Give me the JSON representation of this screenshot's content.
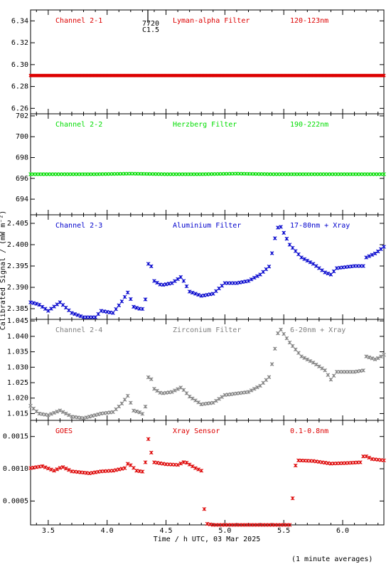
{
  "x_axis_label": "Time / h UTC, 03 Mar 2025",
  "y_axis_label": "Calibrated Signal / (mW m⁻²)",
  "footnote": "(1 minute averages)",
  "marker_note": [
    "7720",
    "C1.5"
  ],
  "chart_data": {
    "type": "scatter",
    "x_range": [
      3.35,
      6.35
    ],
    "x_ticks": [
      3.5,
      4.0,
      4.5,
      5.0,
      5.5,
      6.0
    ],
    "x_tick_labels": [
      "3.5",
      "4.0",
      "4.5",
      "5.0",
      "5.5",
      "6.0"
    ],
    "panels": [
      {
        "labels": [
          "Channel 2-1",
          "Lyman-alpha Filter",
          "120-123nm"
        ],
        "color": "#dd0000",
        "ylim": [
          6.255,
          6.35
        ],
        "y_ticks": [
          6.26,
          6.28,
          6.3,
          6.32,
          6.34
        ],
        "y_tick_labels": [
          "6.26",
          "6.28",
          "6.30",
          "6.32",
          "6.34"
        ],
        "points": [
          [
            3.35,
            6.29
          ],
          [
            3.6,
            6.29
          ],
          [
            3.9,
            6.29
          ],
          [
            4.2,
            6.29
          ],
          [
            4.5,
            6.29
          ],
          [
            4.8,
            6.29
          ],
          [
            5.1,
            6.29
          ],
          [
            5.4,
            6.29
          ],
          [
            5.7,
            6.29
          ],
          [
            6.0,
            6.29
          ],
          [
            6.35,
            6.29
          ]
        ]
      },
      {
        "labels": [
          "Channel 2-2",
          "Herzberg Filter",
          "190-222nm"
        ],
        "color": "#00dd00",
        "ylim": [
          692.5,
          702.2
        ],
        "y_ticks": [
          694,
          696,
          698,
          700,
          702
        ],
        "y_tick_labels": [
          "694",
          "696",
          "698",
          "700",
          "702"
        ],
        "points": [
          [
            3.35,
            696.4
          ],
          [
            3.6,
            696.4
          ],
          [
            3.9,
            696.4
          ],
          [
            4.2,
            696.45
          ],
          [
            4.5,
            696.4
          ],
          [
            4.8,
            696.4
          ],
          [
            5.1,
            696.45
          ],
          [
            5.4,
            696.4
          ],
          [
            5.7,
            696.4
          ],
          [
            6.0,
            696.4
          ],
          [
            6.35,
            696.4
          ]
        ]
      },
      {
        "labels": [
          "Channel 2-3",
          "Aluminium Filter",
          "17-80nm + Xray"
        ],
        "color": "#0000cc",
        "ylim": [
          2.3825,
          2.407
        ],
        "y_ticks": [
          2.385,
          2.39,
          2.395,
          2.4,
          2.405
        ],
        "y_tick_labels": [
          "2.385",
          "2.390",
          "2.395",
          "2.400",
          "2.405"
        ],
        "points": [
          [
            3.35,
            2.3865
          ],
          [
            3.42,
            2.386
          ],
          [
            3.5,
            2.3845
          ],
          [
            3.6,
            2.3865
          ],
          [
            3.7,
            2.384
          ],
          [
            3.8,
            2.383
          ],
          [
            3.9,
            2.383
          ],
          [
            3.95,
            2.3845
          ],
          [
            4.05,
            2.384
          ],
          [
            4.12,
            2.3865
          ],
          [
            4.18,
            2.389
          ],
          [
            4.22,
            2.3855
          ],
          [
            4.27,
            2.385
          ],
          [
            4.32,
            2.3849
          ],
          [
            4.34,
            2.394
          ],
          [
            4.36,
            2.397
          ],
          [
            4.4,
            2.3915
          ],
          [
            4.46,
            2.3905
          ],
          [
            4.55,
            2.391
          ],
          [
            4.63,
            2.3925
          ],
          [
            4.7,
            2.389
          ],
          [
            4.8,
            2.388
          ],
          [
            4.9,
            2.3885
          ],
          [
            5.0,
            2.391
          ],
          [
            5.1,
            2.391
          ],
          [
            5.2,
            2.3915
          ],
          [
            5.3,
            2.393
          ],
          [
            5.38,
            2.395
          ],
          [
            5.42,
            2.401
          ],
          [
            5.46,
            2.405
          ],
          [
            5.55,
            2.4
          ],
          [
            5.65,
            2.397
          ],
          [
            5.75,
            2.3955
          ],
          [
            5.85,
            2.3935
          ],
          [
            5.9,
            2.393
          ],
          [
            5.95,
            2.3945
          ],
          [
            6.1,
            2.395
          ],
          [
            6.18,
            2.395
          ],
          [
            6.2,
            2.397
          ],
          [
            6.28,
            2.398
          ],
          [
            6.35,
            2.3995
          ]
        ]
      },
      {
        "labels": [
          "Channel 2-4",
          "Zirconium Filter",
          "6-20nm + Xray"
        ],
        "color": "#808080",
        "ylim": [
          1.0128,
          1.0455
        ],
        "y_ticks": [
          1.015,
          1.02,
          1.025,
          1.03,
          1.035,
          1.04,
          1.045
        ],
        "y_tick_labels": [
          "1.015",
          "1.020",
          "1.025",
          "1.030",
          "1.035",
          "1.040",
          "1.045"
        ],
        "points": [
          [
            3.35,
            1.0175
          ],
          [
            3.42,
            1.015
          ],
          [
            3.5,
            1.0145
          ],
          [
            3.6,
            1.016
          ],
          [
            3.7,
            1.014
          ],
          [
            3.8,
            1.0135
          ],
          [
            3.9,
            1.0145
          ],
          [
            3.95,
            1.015
          ],
          [
            4.05,
            1.0155
          ],
          [
            4.12,
            1.018
          ],
          [
            4.18,
            1.021
          ],
          [
            4.22,
            1.016
          ],
          [
            4.27,
            1.0155
          ],
          [
            4.32,
            1.0145
          ],
          [
            4.34,
            1.0255
          ],
          [
            4.36,
            1.028
          ],
          [
            4.4,
            1.023
          ],
          [
            4.46,
            1.0215
          ],
          [
            4.55,
            1.022
          ],
          [
            4.63,
            1.0235
          ],
          [
            4.7,
            1.0205
          ],
          [
            4.8,
            1.018
          ],
          [
            4.9,
            1.0185
          ],
          [
            5.0,
            1.021
          ],
          [
            5.1,
            1.0215
          ],
          [
            5.2,
            1.022
          ],
          [
            5.3,
            1.024
          ],
          [
            5.38,
            1.027
          ],
          [
            5.42,
            1.035
          ],
          [
            5.46,
            1.043
          ],
          [
            5.55,
            1.038
          ],
          [
            5.65,
            1.0335
          ],
          [
            5.75,
            1.0315
          ],
          [
            5.85,
            1.029
          ],
          [
            5.9,
            1.026
          ],
          [
            5.95,
            1.0285
          ],
          [
            6.1,
            1.0285
          ],
          [
            6.18,
            1.029
          ],
          [
            6.2,
            1.0335
          ],
          [
            6.28,
            1.0325
          ],
          [
            6.35,
            1.034
          ]
        ]
      },
      {
        "labels": [
          "GOES",
          "Xray Sensor",
          "0.1-0.8nm"
        ],
        "color": "#dd0000",
        "ylim": [
          0.00013,
          0.00175
        ],
        "y_ticks": [
          0.0005,
          0.001,
          0.0015
        ],
        "y_tick_labels": [
          "0.0005",
          "0.0010",
          "0.0015"
        ],
        "points": [
          [
            3.35,
            0.00101
          ],
          [
            3.45,
            0.00104
          ],
          [
            3.55,
            0.00097
          ],
          [
            3.62,
            0.00103
          ],
          [
            3.7,
            0.00096
          ],
          [
            3.85,
            0.00093
          ],
          [
            3.95,
            0.00096
          ],
          [
            4.05,
            0.00097
          ],
          [
            4.15,
            0.00101
          ],
          [
            4.18,
            0.00109
          ],
          [
            4.25,
            0.00097
          ],
          [
            4.32,
            0.00095
          ],
          [
            4.34,
            0.00155
          ],
          [
            4.37,
            0.00128
          ],
          [
            4.4,
            0.0011
          ],
          [
            4.5,
            0.00107
          ],
          [
            4.6,
            0.00106
          ],
          [
            4.66,
            0.00111
          ],
          [
            4.75,
            0.00101
          ],
          [
            4.8,
            0.00097
          ],
          [
            4.82,
            0.00045
          ],
          [
            4.84,
            0.00015
          ],
          [
            4.9,
            0.00013
          ],
          [
            5.0,
            0.00013
          ],
          [
            5.2,
            0.00013
          ],
          [
            5.4,
            0.00013
          ],
          [
            5.55,
            0.00013
          ],
          [
            5.56,
            0.00028
          ],
          [
            5.58,
            0.00063
          ],
          [
            5.6,
            0.00105
          ],
          [
            5.62,
            0.00113
          ],
          [
            5.75,
            0.00112
          ],
          [
            5.9,
            0.00108
          ],
          [
            6.05,
            0.00109
          ],
          [
            6.15,
            0.0011
          ],
          [
            6.18,
            0.00121
          ],
          [
            6.25,
            0.00115
          ],
          [
            6.35,
            0.00113
          ]
        ]
      }
    ]
  }
}
